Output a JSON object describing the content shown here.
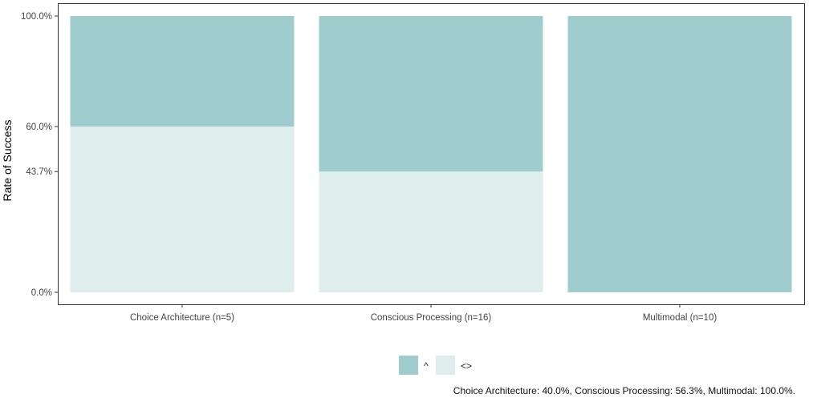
{
  "chart_data": {
    "type": "bar",
    "stacked": true,
    "categories": [
      "Choice Architecture (n=5)",
      "Conscious Processing (n=16)",
      "Multimodal (n=10)"
    ],
    "series": [
      {
        "name": "<>",
        "values": [
          60.0,
          43.7,
          0.0
        ],
        "color": "#e0eded"
      },
      {
        "name": "^",
        "values": [
          40.0,
          56.3,
          100.0
        ],
        "color": "#9fcdcd"
      }
    ],
    "title": "",
    "xlabel": "",
    "ylabel": "Rate of Success",
    "ylim": [
      0,
      100
    ],
    "yticks": [
      0.0,
      43.7,
      60.0,
      100.0
    ],
    "ytick_labels": [
      "0.0%",
      "43.7%",
      "60.0%",
      "100.0%"
    ],
    "legend_position": "bottom",
    "grid": false,
    "caption": "Choice Architecture: 40.0%, Conscious Processing: 56.3%, Multimodal: 100.0%."
  }
}
